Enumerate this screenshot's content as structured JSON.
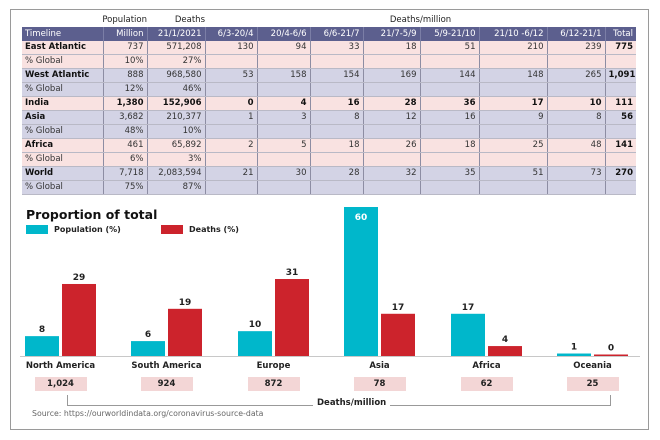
{
  "table": {
    "super_headers": {
      "population": "Population",
      "deaths": "Deaths",
      "deaths_per_million": "Deaths/million"
    },
    "headers": [
      "Timeline",
      "Million",
      "21/1/2021",
      "6/3-20/4",
      "20/4-6/6",
      "6/6-21/7",
      "21/7-5/9",
      "5/9-21/10",
      "21/10 -6/12",
      "6/12-21/1",
      "Total"
    ],
    "rows": [
      {
        "style": "pink main",
        "cells": [
          "East Atlantic",
          "737",
          "571,208",
          "130",
          "94",
          "33",
          "18",
          "51",
          "210",
          "239",
          "775"
        ]
      },
      {
        "style": "pink",
        "cells": [
          "% Global",
          "10%",
          "27%",
          "",
          "",
          "",
          "",
          "",
          "",
          "",
          ""
        ]
      },
      {
        "style": "blue main",
        "cells": [
          "West Atlantic",
          "888",
          "968,580",
          "53",
          "158",
          "154",
          "169",
          "144",
          "148",
          "265",
          "1,091"
        ]
      },
      {
        "style": "blue",
        "cells": [
          "% Global",
          "12%",
          "46%",
          "",
          "",
          "",
          "",
          "",
          "",
          "",
          ""
        ]
      },
      {
        "style": "pink bold",
        "cells": [
          "India",
          "1,380",
          "152,906",
          "0",
          "4",
          "16",
          "28",
          "36",
          "17",
          "10",
          "111"
        ]
      },
      {
        "style": "blue main",
        "cells": [
          "Asia",
          "3,682",
          "210,377",
          "1",
          "3",
          "8",
          "12",
          "16",
          "9",
          "8",
          "56"
        ]
      },
      {
        "style": "blue",
        "cells": [
          "% Global",
          "48%",
          "10%",
          "",
          "",
          "",
          "",
          "",
          "",
          "",
          ""
        ]
      },
      {
        "style": "pink main",
        "cells": [
          "Africa",
          "461",
          "65,892",
          "2",
          "5",
          "18",
          "26",
          "18",
          "25",
          "48",
          "141"
        ]
      },
      {
        "style": "pink",
        "cells": [
          "% Global",
          "6%",
          "3%",
          "",
          "",
          "",
          "",
          "",
          "",
          "",
          ""
        ]
      },
      {
        "style": "blue main",
        "cells": [
          "World",
          "7,718",
          "2,083,594",
          "21",
          "30",
          "28",
          "32",
          "35",
          "51",
          "73",
          "270"
        ]
      },
      {
        "style": "blue",
        "cells": [
          "% Global",
          "75%",
          "87%",
          "",
          "",
          "",
          "",
          "",
          "",
          "",
          ""
        ]
      }
    ]
  },
  "chart_data": {
    "type": "bar",
    "title": "Proportion of total",
    "categories": [
      "North America",
      "South America",
      "Europe",
      "Asia",
      "Africa",
      "Oceania"
    ],
    "series": [
      {
        "name": "Population (%)",
        "color": "#00b7cb",
        "values": [
          8,
          6,
          10,
          60,
          17,
          1
        ]
      },
      {
        "name": "Deaths (%)",
        "color": "#cc232c",
        "values": [
          29,
          19,
          31,
          17,
          4,
          0
        ]
      }
    ],
    "deaths_per_million": {
      "label": "Deaths/million",
      "values": [
        "1,024",
        "924",
        "872",
        "78",
        "62",
        "25"
      ]
    },
    "xlabel": "",
    "ylabel": "",
    "ylim": [
      0,
      60
    ],
    "grid": false,
    "legend": "top-left"
  },
  "source": "Source: https://ourworldindata.org/coronavirus-source-data"
}
